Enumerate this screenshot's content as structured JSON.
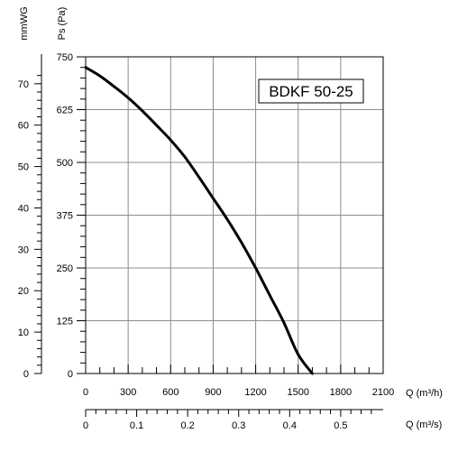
{
  "chart_data": {
    "type": "line",
    "title": "BDKF 50-25",
    "x_axis": {
      "label": "Q (m³/h)",
      "min": 0,
      "max": 2100,
      "ticks": [
        0,
        300,
        600,
        900,
        1200,
        1500,
        1800,
        2100
      ],
      "minor_step": 100
    },
    "x2_axis": {
      "label": "Q (m³/s)",
      "min": 0,
      "max": 0.5833,
      "ticks": [
        0,
        0.1,
        0.2,
        0.3,
        0.4,
        0.5
      ],
      "tick_labels": [
        "0",
        "0.1",
        "0.2",
        "0.3",
        "0.4",
        "0.5"
      ],
      "minor_step": 0.02
    },
    "y_axis": {
      "label": "Ps (Pa)",
      "min": 0,
      "max": 750,
      "ticks": [
        0,
        125,
        250,
        375,
        500,
        625,
        750
      ],
      "minor_step": 25
    },
    "y2_axis": {
      "label": "mmWG",
      "min": 0,
      "max": 76.5,
      "ticks": [
        0,
        10,
        20,
        30,
        40,
        50,
        60,
        70
      ],
      "minor_step": 2
    },
    "grid": true,
    "series": [
      {
        "x": [
          0,
          100,
          200,
          300,
          400,
          500,
          600,
          700,
          800,
          900,
          1000,
          1100,
          1200,
          1300,
          1400,
          1500,
          1600
        ],
        "y": [
          725,
          705,
          680,
          653,
          622,
          588,
          553,
          513,
          465,
          415,
          365,
          310,
          250,
          185,
          120,
          45,
          0
        ]
      }
    ]
  }
}
